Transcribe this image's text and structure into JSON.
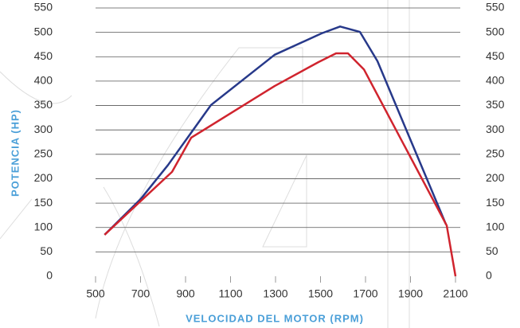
{
  "chart_data": {
    "type": "line",
    "y_label": "POTENCIA (HP)",
    "x_label": "VELOCIDAD DEL MOTOR (RPM)",
    "xlim": [
      500,
      2100
    ],
    "xticks": [
      500,
      700,
      900,
      1100,
      1300,
      1500,
      1700,
      1900,
      2100
    ],
    "ylim": [
      0,
      550
    ],
    "yticks": [
      0,
      50,
      100,
      150,
      200,
      250,
      300,
      350,
      400,
      450,
      500,
      550
    ],
    "y2lim": [
      0,
      550
    ],
    "y2ticks": [
      0,
      50,
      100,
      150,
      200,
      250,
      300,
      350,
      400,
      450,
      500,
      550
    ],
    "grid": true,
    "series": [
      {
        "color": "#27398a",
        "x": [
          540,
          700,
          822,
          1013,
          1296,
          1505,
          1587,
          1675,
          1753,
          2058
        ],
        "values": [
          85,
          158,
          228,
          351,
          454,
          498,
          512,
          501,
          441,
          106
        ]
      },
      {
        "color": "#d0242e",
        "x": [
          540,
          691,
          840,
          925,
          1296,
          1491,
          1569,
          1622,
          1693,
          2061,
          2100
        ],
        "values": [
          85,
          150,
          214,
          284,
          390,
          439,
          457,
          457,
          424,
          104,
          0
        ]
      }
    ]
  }
}
